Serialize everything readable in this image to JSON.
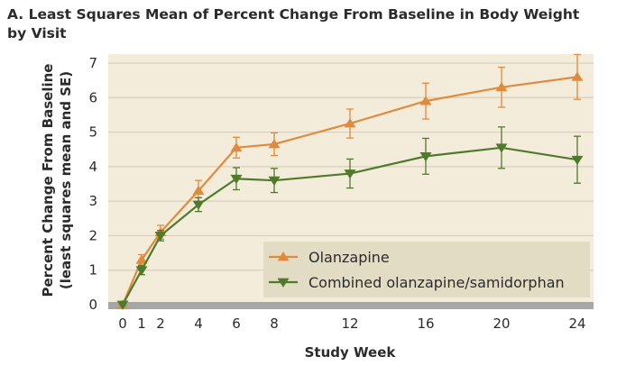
{
  "chart_data": {
    "type": "line",
    "title": "A. Least Squares Mean of Percent Change From Baseline in Body Weight by Visit",
    "title_lines": [
      "A.  Least Squares Mean of Percent Change From Baseline in Body Weight",
      "by Visit"
    ],
    "xlabel": "Study Week",
    "ylabel": "Percent Change From Baseline",
    "ylabel_sub": "(least squares mean and SE)",
    "x": [
      0,
      1,
      2,
      4,
      6,
      8,
      12,
      16,
      20,
      24
    ],
    "x_ticks": [
      0,
      1,
      2,
      4,
      6,
      8,
      12,
      16,
      20,
      24
    ],
    "y_ticks": [
      0,
      1,
      2,
      3,
      4,
      5,
      6,
      7
    ],
    "xlim": [
      0,
      24.8
    ],
    "ylim": [
      0,
      7.3
    ],
    "grid": true,
    "legend_position": "bottom-right",
    "colors": {
      "plot_background": "#f3ecdb",
      "grid": "#d9cfbc",
      "legend_background": "#e3dcc4",
      "baseline_bar": "#a6a6a6"
    },
    "series": [
      {
        "name": "Olanzapine",
        "marker": "triangle-up",
        "color": "#e08b3c",
        "values": [
          0,
          1.3,
          2.1,
          3.3,
          4.55,
          4.65,
          5.25,
          5.9,
          6.3,
          6.6
        ],
        "se": [
          0,
          0.15,
          0.2,
          0.3,
          0.3,
          0.33,
          0.42,
          0.52,
          0.58,
          0.65
        ]
      },
      {
        "name": "Combined olanzapine/samidorphan",
        "marker": "triangle-down",
        "color": "#4f7a2c",
        "values": [
          0,
          1.0,
          2.0,
          2.9,
          3.65,
          3.6,
          3.8,
          4.3,
          4.55,
          4.2
        ],
        "se": [
          0,
          0.13,
          0.15,
          0.2,
          0.32,
          0.35,
          0.42,
          0.52,
          0.6,
          0.68
        ]
      }
    ]
  }
}
